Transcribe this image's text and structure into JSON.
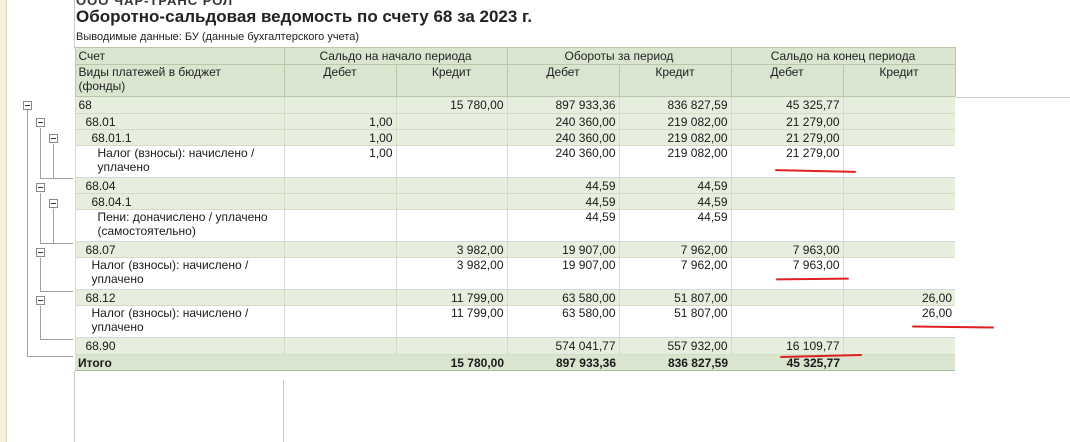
{
  "header": {
    "company": "ООО ЧАР-ТРАНС РОЛ",
    "title": "Оборотно-сальдовая ведомость по счету 68 за 2023 г.",
    "subtitle": "Выводимые данные: БУ (данные бухгалтерского учета)"
  },
  "columns": {
    "account": "Счет",
    "payment_types_1": "Виды платежей в бюджет",
    "payment_types_2": "(фонды)",
    "opening": "Сальдо на начало периода",
    "turnover": "Обороты за период",
    "closing": "Сальдо на конец периода",
    "debit": "Дебет",
    "credit": "Кредит"
  },
  "rows": [
    {
      "label": "68",
      "l2": "",
      "od": "",
      "oc": "15 780,00",
      "td": "897 933,36",
      "tc": "836 827,59",
      "cd": "45 325,77",
      "cc": ""
    },
    {
      "label": "68.01",
      "l2": "",
      "od": "1,00",
      "oc": "",
      "td": "240 360,00",
      "tc": "219 082,00",
      "cd": "21 279,00",
      "cc": ""
    },
    {
      "label": "68.01.1",
      "l2": "",
      "od": "1,00",
      "oc": "",
      "td": "240 360,00",
      "tc": "219 082,00",
      "cd": "21 279,00",
      "cc": ""
    },
    {
      "label": "Налог (взносы): начислено /",
      "l2": "уплачено",
      "od": "1,00",
      "oc": "",
      "td": "240 360,00",
      "tc": "219 082,00",
      "cd": "21 279,00",
      "cc": ""
    },
    {
      "label": "68.04",
      "l2": "",
      "od": "",
      "oc": "",
      "td": "44,59",
      "tc": "44,59",
      "cd": "",
      "cc": ""
    },
    {
      "label": "68.04.1",
      "l2": "",
      "od": "",
      "oc": "",
      "td": "44,59",
      "tc": "44,59",
      "cd": "",
      "cc": ""
    },
    {
      "label": "Пени: доначислено / уплачено",
      "l2": "(самостоятельно)",
      "od": "",
      "oc": "",
      "td": "44,59",
      "tc": "44,59",
      "cd": "",
      "cc": ""
    },
    {
      "label": "68.07",
      "l2": "",
      "od": "",
      "oc": "3 982,00",
      "td": "19 907,00",
      "tc": "7 962,00",
      "cd": "7 963,00",
      "cc": ""
    },
    {
      "label": "Налог (взносы): начислено /",
      "l2": "уплачено",
      "od": "",
      "oc": "3 982,00",
      "td": "19 907,00",
      "tc": "7 962,00",
      "cd": "7 963,00",
      "cc": ""
    },
    {
      "label": "68.12",
      "l2": "",
      "od": "",
      "oc": "11 799,00",
      "td": "63 580,00",
      "tc": "51 807,00",
      "cd": "",
      "cc": "26,00"
    },
    {
      "label": "Налог (взносы): начислено /",
      "l2": "уплачено",
      "od": "",
      "oc": "11 799,00",
      "td": "63 580,00",
      "tc": "51 807,00",
      "cd": "",
      "cc": "26,00"
    },
    {
      "label": "68.90",
      "l2": "",
      "od": "",
      "oc": "",
      "td": "574 041,77",
      "tc": "557 932,00",
      "cd": "16 109,77",
      "cc": ""
    }
  ],
  "total": {
    "label": "Итого",
    "od": "",
    "oc": "15 780,00",
    "td": "897 933,36",
    "tc": "836 827,59",
    "cd": "45 325,77",
    "cc": ""
  },
  "colors": {
    "header_bg": "#d9e5ce",
    "group_bg": "#e6eedd",
    "annotation": "#e02020"
  }
}
